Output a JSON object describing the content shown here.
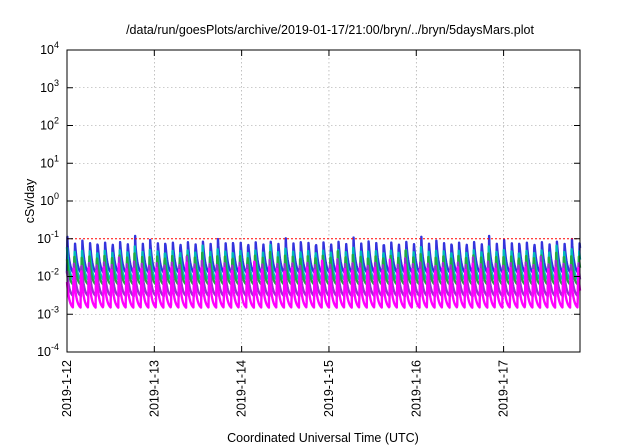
{
  "chart_data": {
    "type": "line",
    "title": "/data/run/goesPlots/archive/2019-01-17/21:00/bryn/../bryn/5daysMars.plot",
    "xlabel": "Coordinated Universal Time (UTC)",
    "ylabel": "cSv/day",
    "x_start": "2019-01-12",
    "x_end": "2019-01-17 21:00",
    "xlim_days": [
      0,
      5.875
    ],
    "x_ticks": [
      {
        "day": 0,
        "label": "2019-1-12"
      },
      {
        "day": 1,
        "label": "2019-1-13"
      },
      {
        "day": 2,
        "label": "2019-1-14"
      },
      {
        "day": 3,
        "label": "2019-1-15"
      },
      {
        "day": 4,
        "label": "2019-1-16"
      },
      {
        "day": 5,
        "label": "2019-1-17"
      }
    ],
    "y_scale": "log",
    "ylim": [
      0.0001,
      10000
    ],
    "y_ticks": [
      {
        "value": 0.0001,
        "base": "10",
        "exp": "-4"
      },
      {
        "value": 0.001,
        "base": "10",
        "exp": "-3"
      },
      {
        "value": 0.01,
        "base": "10",
        "exp": "-2"
      },
      {
        "value": 0.1,
        "base": "10",
        "exp": "-1"
      },
      {
        "value": 1,
        "base": "10",
        "exp": "0"
      },
      {
        "value": 10,
        "base": "10",
        "exp": "1"
      },
      {
        "value": 100,
        "base": "10",
        "exp": "2"
      },
      {
        "value": 1000,
        "base": "10",
        "exp": "3"
      },
      {
        "value": 10000,
        "base": "10",
        "exp": "4"
      }
    ],
    "grid": true,
    "reference_line": {
      "value": 0.1,
      "color": "#ff0000"
    },
    "oscillation_period_hours": 2.07,
    "series": [
      {
        "color": "#3333dd",
        "peak": 0.12,
        "trough": 0.012
      },
      {
        "color": "#00bbbb",
        "peak": 0.07,
        "trough": 0.008
      },
      {
        "color": "#22aa44",
        "peak": 0.05,
        "trough": 0.006
      },
      {
        "color": "#9933cc",
        "peak": 0.035,
        "trough": 0.003
      },
      {
        "color": "#ff00ff",
        "peak": 0.028,
        "trough": 0.0015
      }
    ]
  }
}
